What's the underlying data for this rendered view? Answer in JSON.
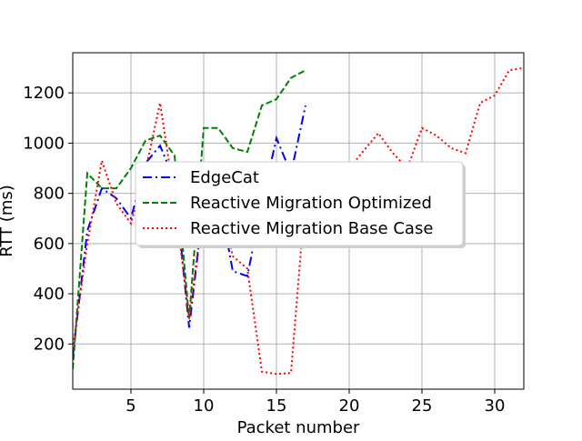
{
  "chart_data": {
    "type": "line",
    "xlabel": "Packet number",
    "ylabel": "RTT (ms)",
    "xlim": [
      1,
      32
    ],
    "ylim": [
      20,
      1360
    ],
    "x_ticks": [
      5,
      10,
      15,
      20,
      25,
      30
    ],
    "y_ticks": [
      200,
      400,
      600,
      800,
      1000,
      1200
    ],
    "grid": true,
    "legend_position": "center",
    "series": [
      {
        "name": "EdgeCat",
        "color": "#0000ff",
        "style": "dashdot",
        "x": [
          1,
          2,
          3,
          4,
          5,
          6,
          7,
          8,
          9,
          10,
          11,
          12,
          13,
          14,
          15,
          16,
          17
        ],
        "y": [
          150,
          650,
          820,
          780,
          700,
          920,
          990,
          850,
          265,
          760,
          800,
          490,
          470,
          760,
          1020,
          880,
          1150
        ]
      },
      {
        "name": "Reactive Migration Optimized",
        "color": "#008000",
        "style": "dashed",
        "x": [
          1,
          2,
          3,
          4,
          5,
          6,
          7,
          8,
          9,
          10,
          11,
          12,
          13,
          14,
          15,
          16,
          17
        ],
        "y": [
          100,
          880,
          820,
          820,
          900,
          1010,
          1030,
          950,
          300,
          1060,
          1060,
          980,
          965,
          1150,
          1175,
          1260,
          1290
        ]
      },
      {
        "name": "Reactive Migration Base Case",
        "color": "#ff0000",
        "style": "dotted",
        "x": [
          1,
          2,
          3,
          4,
          5,
          6,
          7,
          8,
          9,
          10,
          11,
          12,
          13,
          14,
          15,
          16,
          17,
          18,
          19,
          20,
          21,
          22,
          23,
          24,
          25,
          26,
          27,
          28,
          29,
          30,
          31,
          32
        ],
        "y": [
          180,
          600,
          930,
          760,
          680,
          890,
          1160,
          780,
          300,
          760,
          810,
          550,
          500,
          90,
          80,
          85,
          800,
          770,
          850,
          900,
          970,
          1040,
          960,
          900,
          1060,
          1030,
          980,
          960,
          1160,
          1190,
          1290,
          1300
        ]
      }
    ]
  }
}
